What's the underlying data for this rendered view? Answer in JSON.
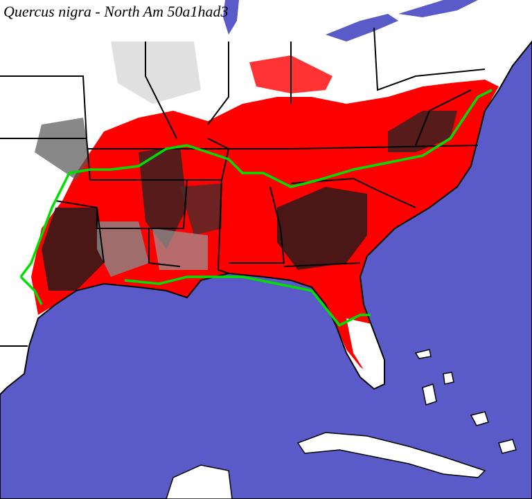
{
  "title": "Quercus nigra - North Am 50a1had3"
}
